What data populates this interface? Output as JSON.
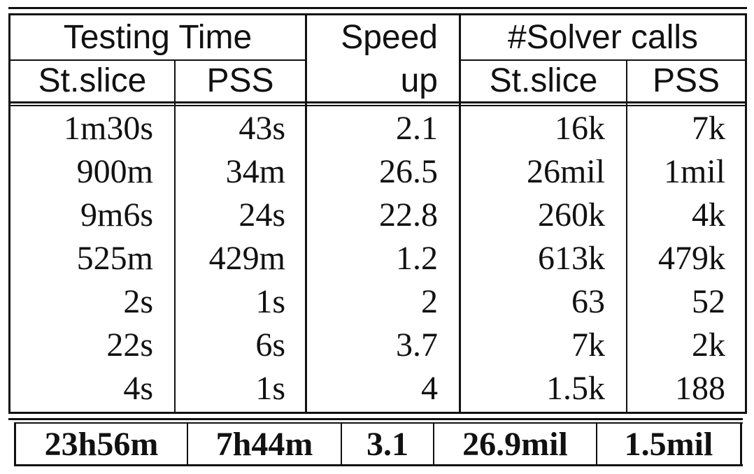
{
  "table": {
    "header": {
      "testing_time": "Testing Time",
      "speed": "Speed",
      "up": "up",
      "solver_calls": "#Solver calls",
      "st_slice_1": "St.slice",
      "pss_1": "PSS",
      "st_slice_2": "St.slice",
      "pss_2": "PSS"
    },
    "rows": [
      [
        "1m30s",
        "43s",
        "2.1",
        "16k",
        "7k"
      ],
      [
        "900m",
        "34m",
        "26.5",
        "26mil",
        "1mil"
      ],
      [
        "9m6s",
        "24s",
        "22.8",
        "260k",
        "4k"
      ],
      [
        "525m",
        "429m",
        "1.2",
        "613k",
        "479k"
      ],
      [
        "2s",
        "1s",
        "2",
        "63",
        "52"
      ],
      [
        "22s",
        "6s",
        "3.7",
        "7k",
        "2k"
      ],
      [
        "4s",
        "1s",
        "4",
        "1.5k",
        "188"
      ]
    ],
    "total": [
      "23h56m",
      "7h44m",
      "3.1",
      "26.9mil",
      "1.5mil"
    ]
  }
}
